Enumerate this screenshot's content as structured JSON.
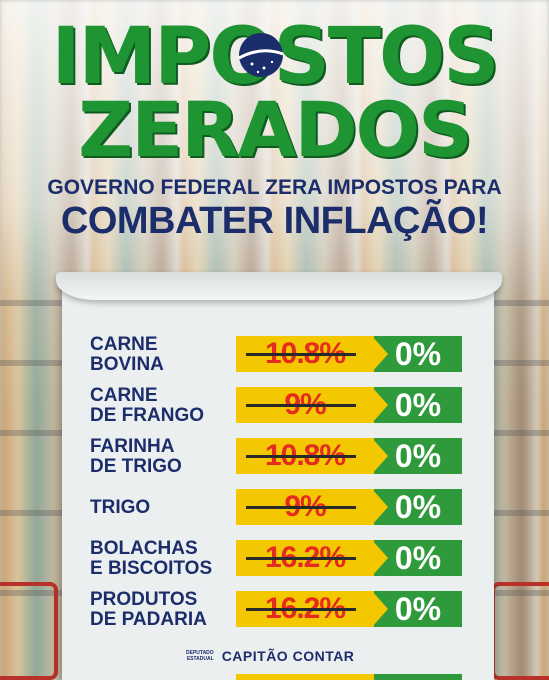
{
  "headline": {
    "line1": "IMPOSTOS",
    "line2": "ZERADOS"
  },
  "subtitle": {
    "line1": "GOVERNO FEDERAL ZERA IMPOSTOS PARA",
    "line2": "COMBATER INFLAÇÃO!"
  },
  "items": [
    {
      "label1": "CARNE",
      "label2": "BOVINA",
      "old": "10.8%",
      "new": "0%"
    },
    {
      "label1": "CARNE",
      "label2": "DE FRANGO",
      "old": "9%",
      "new": "0%"
    },
    {
      "label1": "FARINHA",
      "label2": "DE TRIGO",
      "old": "10.8%",
      "new": "0%"
    },
    {
      "label1": "TRIGO",
      "label2": "",
      "old": "9%",
      "new": "0%"
    },
    {
      "label1": "BOLACHAS",
      "label2": "E BISCOITOS",
      "old": "16.2%",
      "new": "0%"
    },
    {
      "label1": "PRODUTOS",
      "label2": "DE PADARIA",
      "old": "16.2%",
      "new": "0%"
    }
  ],
  "footer": {
    "dep_line1": "DEPUTADO",
    "dep_line2": "ESTADUAL",
    "name": "CAPITÃO CONTAR"
  },
  "colors": {
    "green": "#1e9433",
    "navy": "#1b2d6b",
    "yellow": "#f3c800",
    "red": "#e52b1f",
    "badge_green": "#2e9a3b"
  }
}
